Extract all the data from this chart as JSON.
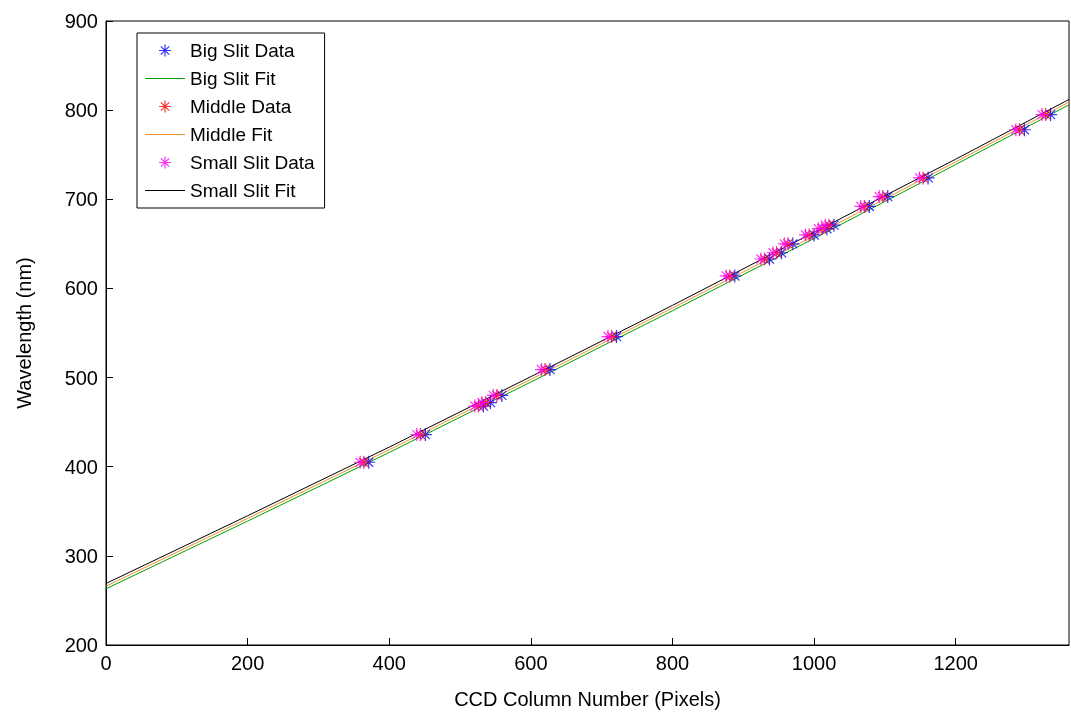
{
  "chart_data": {
    "type": "scatter",
    "xlabel": "CCD Column Number (Pixels)",
    "ylabel": "Wavelength (nm)",
    "xlim": [
      0,
      1360
    ],
    "xticks": [
      0,
      200,
      400,
      600,
      800,
      1000,
      1200
    ],
    "ylim": [
      200,
      900
    ],
    "yticks": [
      200,
      300,
      400,
      500,
      600,
      700,
      800,
      900
    ],
    "grid": false,
    "legend": "top left",
    "series": [
      {
        "name": "Big Slit Data",
        "marker": "cross",
        "color": "#0000ff",
        "x": [
          371,
          451,
          533,
          543,
          559,
          627,
          721,
          888,
          937,
          954,
          970,
          1000,
          1018,
          1028,
          1078,
          1104,
          1161,
          1297,
          1334
        ],
        "values": [
          405,
          436,
          468,
          472,
          480,
          509,
          546,
          614,
          633,
          640,
          650,
          660,
          667,
          671,
          692,
          703,
          724,
          778,
          795
        ]
      },
      {
        "name": "Big Slit Fit",
        "type": "line",
        "marker": "none",
        "color": "#00a000",
        "x": [
          0,
          200,
          400,
          600,
          800,
          1000,
          1200,
          1360
        ],
        "values": [
          263,
          339,
          416,
          495,
          575,
          656,
          739,
          806
        ]
      },
      {
        "name": "Middle Data",
        "marker": "cross",
        "color": "#ff0000",
        "x": [
          364,
          444,
          526,
          536,
          552,
          620,
          714,
          881,
          930,
          947,
          963,
          993,
          1011,
          1021,
          1071,
          1097,
          1154,
          1290,
          1327
        ],
        "values": [
          405,
          436,
          468,
          472,
          480,
          509,
          546,
          614,
          633,
          640,
          650,
          660,
          667,
          671,
          692,
          703,
          724,
          778,
          795
        ]
      },
      {
        "name": "Middle Fit",
        "type": "line",
        "marker": "none",
        "color": "#f0902a",
        "x": [
          0,
          200,
          400,
          600,
          800,
          1000,
          1200,
          1360
        ],
        "values": [
          266,
          342,
          419,
          498,
          578,
          659,
          742,
          809
        ]
      },
      {
        "name": "Small Slit Data",
        "marker": "cross",
        "color": "#ff00ff",
        "x": [
          359,
          439,
          521,
          531,
          547,
          615,
          709,
          876,
          925,
          942,
          958,
          988,
          1006,
          1016,
          1066,
          1092,
          1149,
          1285,
          1322
        ],
        "values": [
          405,
          436,
          468,
          472,
          480,
          509,
          546,
          614,
          633,
          640,
          650,
          660,
          667,
          671,
          692,
          703,
          724,
          778,
          795
        ]
      },
      {
        "name": "Small Slit Fit",
        "type": "line",
        "marker": "none",
        "color": "#000000",
        "x": [
          0,
          200,
          400,
          600,
          800,
          1200,
          1360
        ],
        "values": [
          269,
          345,
          422,
          501,
          581,
          745,
          812
        ]
      }
    ]
  }
}
